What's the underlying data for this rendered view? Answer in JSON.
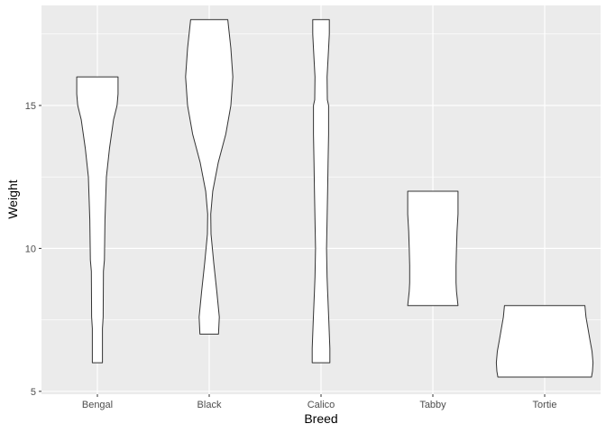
{
  "chart_data": {
    "type": "violin",
    "xlabel": "Breed",
    "ylabel": "Weight",
    "categories": [
      "Bengal",
      "Black",
      "Calico",
      "Tabby",
      "Tortie"
    ],
    "ylim": [
      4.9,
      18.5
    ],
    "yticks": [
      5,
      10,
      15
    ],
    "ytick_labels": [
      "5",
      "10",
      "15"
    ],
    "grid": true,
    "panel_background": "#ebebeb",
    "grid_color": "#ffffff",
    "violin_fill": "#ffffff",
    "violin_outline": "#333333",
    "series": [
      {
        "category": "Bengal",
        "min": 6,
        "max": 16,
        "profile": [
          [
            6,
            0.2
          ],
          [
            7.2,
            0.2
          ],
          [
            7.6,
            0.23
          ],
          [
            9.2,
            0.24
          ],
          [
            9.6,
            0.28
          ],
          [
            11,
            0.3
          ],
          [
            12.5,
            0.36
          ],
          [
            13.5,
            0.48
          ],
          [
            14.5,
            0.64
          ],
          [
            15,
            0.78
          ],
          [
            15.4,
            0.82
          ],
          [
            16,
            0.82
          ]
        ]
      },
      {
        "category": "Black",
        "min": 7,
        "max": 18,
        "profile": [
          [
            7,
            0.37
          ],
          [
            7.6,
            0.4
          ],
          [
            8.5,
            0.3
          ],
          [
            9.5,
            0.18
          ],
          [
            10.5,
            0.07
          ],
          [
            11.2,
            0.06
          ],
          [
            12,
            0.14
          ],
          [
            13,
            0.36
          ],
          [
            14,
            0.66
          ],
          [
            15,
            0.86
          ],
          [
            16,
            0.94
          ],
          [
            17,
            0.86
          ],
          [
            18,
            0.74
          ]
        ]
      },
      {
        "category": "Calico",
        "min": 6,
        "max": 18,
        "profile": [
          [
            6,
            0.35
          ],
          [
            6.5,
            0.35
          ],
          [
            7.5,
            0.31
          ],
          [
            8.5,
            0.26
          ],
          [
            9,
            0.24
          ],
          [
            10,
            0.22
          ],
          [
            11,
            0.24
          ],
          [
            12,
            0.26
          ],
          [
            13,
            0.28
          ],
          [
            14,
            0.3
          ],
          [
            15,
            0.3
          ],
          [
            15.2,
            0.25
          ],
          [
            16,
            0.24
          ],
          [
            17,
            0.3
          ],
          [
            17.5,
            0.33
          ],
          [
            18,
            0.33
          ]
        ]
      },
      {
        "category": "Tabby",
        "min": 8,
        "max": 12,
        "profile": [
          [
            8,
            1.0
          ],
          [
            8.5,
            0.94
          ],
          [
            8.8,
            0.92
          ],
          [
            9.4,
            0.92
          ],
          [
            10,
            0.94
          ],
          [
            10.6,
            0.96
          ],
          [
            11.2,
            1.0
          ],
          [
            11.6,
            1.0
          ],
          [
            12,
            1.0
          ]
        ]
      },
      {
        "category": "Tortie",
        "min": 5.5,
        "max": 8,
        "profile": [
          [
            5.5,
            1.86
          ],
          [
            5.7,
            1.9
          ],
          [
            6,
            1.92
          ],
          [
            6.4,
            1.88
          ],
          [
            6.8,
            1.8
          ],
          [
            7.2,
            1.72
          ],
          [
            7.6,
            1.64
          ],
          [
            8,
            1.6
          ]
        ]
      }
    ]
  }
}
